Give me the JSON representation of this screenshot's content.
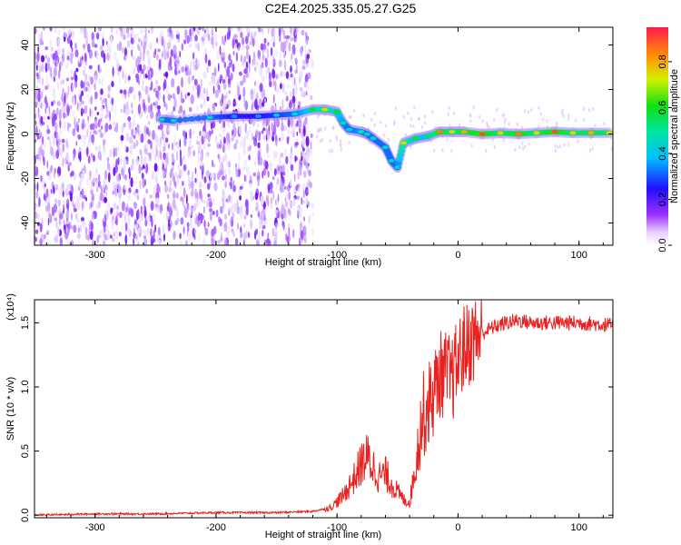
{
  "title": "C2E4.2025.335.05.27.G25",
  "chart_data": [
    {
      "type": "heatmap",
      "xlabel": "Height of straight line (km)",
      "ylabel": "Frequency (Hz)",
      "xlim": [
        -350,
        128
      ],
      "ylim": [
        -50,
        48
      ],
      "xticks": [
        -300,
        -200,
        -100,
        0,
        100
      ],
      "yticks": [
        -40,
        -20,
        0,
        20,
        40
      ],
      "xtick_labels": [
        "-300",
        "-200",
        "-100",
        "0",
        "100"
      ],
      "ytick_labels": [
        "-40",
        "-20",
        "0",
        "20",
        "40"
      ],
      "noise_region_x": [
        -350,
        -120
      ],
      "signal_track": [
        {
          "x": -245,
          "y": 6.5,
          "amp": 0.45
        },
        {
          "x": -235,
          "y": 6.0,
          "amp": 0.45
        },
        {
          "x": -205,
          "y": 7.5,
          "amp": 0.45
        },
        {
          "x": -185,
          "y": 8.0,
          "amp": 0.35
        },
        {
          "x": -165,
          "y": 8.0,
          "amp": 0.35
        },
        {
          "x": -150,
          "y": 8.5,
          "amp": 0.4
        },
        {
          "x": -135,
          "y": 9.0,
          "amp": 0.45
        },
        {
          "x": -120,
          "y": 11.0,
          "amp": 0.6
        },
        {
          "x": -110,
          "y": 11.0,
          "amp": 0.75
        },
        {
          "x": -100,
          "y": 10.0,
          "amp": 0.6
        },
        {
          "x": -95,
          "y": 5.0,
          "amp": 0.5
        },
        {
          "x": -90,
          "y": 2.0,
          "amp": 0.45
        },
        {
          "x": -80,
          "y": 1.0,
          "amp": 0.5
        },
        {
          "x": -75,
          "y": 0.0,
          "amp": 0.45
        },
        {
          "x": -70,
          "y": -2.0,
          "amp": 0.45
        },
        {
          "x": -60,
          "y": -6.0,
          "amp": 0.45
        },
        {
          "x": -55,
          "y": -12.0,
          "amp": 0.45
        },
        {
          "x": -50,
          "y": -15.0,
          "amp": 0.45
        },
        {
          "x": -45,
          "y": -4.0,
          "amp": 0.75
        },
        {
          "x": -35,
          "y": -2.0,
          "amp": 0.6
        },
        {
          "x": -25,
          "y": -1.0,
          "amp": 0.55
        },
        {
          "x": -15,
          "y": 1.0,
          "amp": 0.85
        },
        {
          "x": -5,
          "y": 1.0,
          "amp": 0.75
        },
        {
          "x": 5,
          "y": 1.0,
          "amp": 0.8
        },
        {
          "x": 20,
          "y": 0.0,
          "amp": 0.9
        },
        {
          "x": 35,
          "y": 0.5,
          "amp": 0.75
        },
        {
          "x": 50,
          "y": 0.0,
          "amp": 0.85
        },
        {
          "x": 65,
          "y": 0.5,
          "amp": 0.75
        },
        {
          "x": 80,
          "y": 1.0,
          "amp": 0.9
        },
        {
          "x": 95,
          "y": 0.5,
          "amp": 0.75
        },
        {
          "x": 110,
          "y": 0.5,
          "amp": 0.8
        },
        {
          "x": 125,
          "y": 0.5,
          "amp": 0.75
        }
      ],
      "colorbar": {
        "label": "Normalized spectral amplitude",
        "range": [
          0,
          0.95
        ],
        "ticks": [
          0.0,
          0.2,
          0.4,
          0.6,
          0.8
        ],
        "tick_labels": [
          "0.0",
          "0.2",
          "0.4",
          "0.6",
          "0.8"
        ]
      }
    },
    {
      "type": "line",
      "xlabel": "Height of straight line (km)",
      "ylabel": "SNR (10 * v/v)",
      "scale_label": "(x10⁴)",
      "xlim": [
        -350,
        128
      ],
      "ylim": [
        -0.02,
        1.68
      ],
      "xticks": [
        -300,
        -200,
        -100,
        0,
        100
      ],
      "yticks": [
        0.0,
        0.5,
        1.0,
        1.5
      ],
      "xtick_labels": [
        "-300",
        "-200",
        "-100",
        "0",
        "100"
      ],
      "ytick_labels": [
        "0.0",
        "0.5",
        "1.0",
        "1.5"
      ],
      "series_color": "#e8211e",
      "series": [
        {
          "x": [
            -350,
            -300,
            -250,
            -200,
            -150,
            -120,
            -105,
            -95,
            -85,
            -80,
            -75,
            -70,
            -65,
            -60,
            -55,
            -50,
            -45,
            -40,
            -35,
            -30,
            -25,
            -20,
            -15,
            -10,
            -5,
            0,
            5,
            10,
            20,
            30,
            40,
            50,
            60,
            80,
            100,
            128
          ],
          "y": [
            0.0,
            0.01,
            0.01,
            0.02,
            0.02,
            0.03,
            0.06,
            0.15,
            0.3,
            0.4,
            0.45,
            0.38,
            0.3,
            0.32,
            0.25,
            0.18,
            0.12,
            0.1,
            0.4,
            0.75,
            0.85,
            0.95,
            1.1,
            1.1,
            1.05,
            1.2,
            1.3,
            1.35,
            1.42,
            1.47,
            1.5,
            1.52,
            1.5,
            1.5,
            1.5,
            1.48
          ]
        }
      ]
    }
  ]
}
